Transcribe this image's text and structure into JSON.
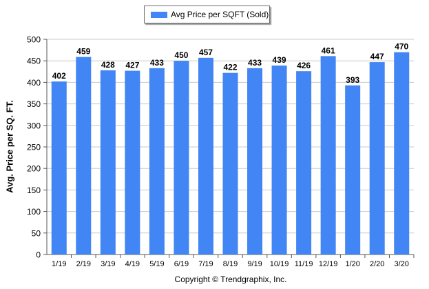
{
  "chart_data": {
    "type": "bar",
    "categories": [
      "1/19",
      "2/19",
      "3/19",
      "4/19",
      "5/19",
      "6/19",
      "7/19",
      "8/19",
      "9/19",
      "10/19",
      "11/19",
      "12/19",
      "1/20",
      "2/20",
      "3/20"
    ],
    "series": [
      {
        "name": "Avg Price per SQFT (Sold)",
        "values": [
          402,
          459,
          428,
          427,
          433,
          450,
          457,
          422,
          433,
          439,
          426,
          461,
          393,
          447,
          470
        ]
      }
    ],
    "data_labels": [
      "402",
      "459",
      "428",
      "427",
      "433",
      "450",
      "457",
      "422",
      "433",
      "439",
      "426",
      "461",
      "393",
      "447",
      "470"
    ],
    "title": "",
    "xlabel": "",
    "ylabel": "Avg. Price per SQ. FT.",
    "ylim": [
      0,
      500
    ],
    "y_ticks": [
      "0",
      "50",
      "100",
      "150",
      "200",
      "250",
      "300",
      "350",
      "400",
      "450",
      "500"
    ],
    "grid": true,
    "legend_position": "top-center",
    "bar_color": "#4285f4"
  },
  "footer": {
    "copyright": "Copyright © Trendgraphix, Inc."
  }
}
